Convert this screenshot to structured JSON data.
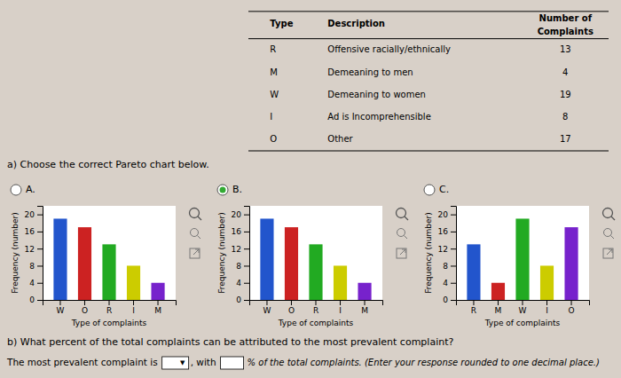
{
  "background": "#d8d0c8",
  "table": {
    "headers": [
      "Type",
      "Description",
      [
        "Number of",
        "Complaints"
      ]
    ],
    "rows": [
      [
        "R",
        "Offensive racially/ethnically",
        13
      ],
      [
        "M",
        "Demeaning to men",
        4
      ],
      [
        "W",
        "Demeaning to women",
        19
      ],
      [
        "I",
        "Ad is Incomprehensible",
        8
      ],
      [
        "O",
        "Other",
        17
      ]
    ]
  },
  "question_a": "a) Choose the correct Pareto chart below.",
  "selected": "B.",
  "chart_data": [
    {
      "type": "bar",
      "title": "A.",
      "categories": [
        "W",
        "O",
        "R",
        "I",
        "M"
      ],
      "values": [
        19,
        17,
        13,
        8,
        4
      ],
      "colors": [
        "#2255cc",
        "#cc2222",
        "#22aa22",
        "#cccc00",
        "#7722cc"
      ],
      "xlabel": "Type of complaints",
      "ylabel": "Frequency (number)",
      "ylim": [
        0,
        22
      ],
      "yticks": [
        0,
        4,
        8,
        12,
        16,
        20
      ],
      "grid": false
    },
    {
      "type": "bar",
      "title": "B.",
      "categories": [
        "W",
        "O",
        "R",
        "I",
        "M"
      ],
      "values": [
        19,
        17,
        13,
        8,
        4
      ],
      "colors": [
        "#2255cc",
        "#cc2222",
        "#22aa22",
        "#cccc00",
        "#7722cc"
      ],
      "xlabel": "Type of complaints",
      "ylabel": "Frequency (number)",
      "ylim": [
        0,
        22
      ],
      "yticks": [
        0,
        4,
        8,
        12,
        16,
        20
      ],
      "grid": false
    },
    {
      "type": "bar",
      "title": "C.",
      "categories": [
        "R",
        "M",
        "W",
        "I",
        "O"
      ],
      "values": [
        13,
        4,
        19,
        8,
        17
      ],
      "colors": [
        "#2255cc",
        "#cc2222",
        "#22aa22",
        "#cccc00",
        "#7722cc"
      ],
      "xlabel": "Type of complaints",
      "ylabel": "Frequency (number)",
      "ylim": [
        0,
        22
      ],
      "yticks": [
        0,
        4,
        8,
        12,
        16,
        20
      ],
      "grid": false
    }
  ],
  "question_b": "b) What percent of the total complaints can be attributed to the most prevalent complaint?",
  "answer_line": {
    "prefix": "The most prevalent complaint is",
    "dropdown": "▼",
    "middle": ", with",
    "suffix": "% of the total complaints. (Enter your response rounded to one decimal place.)"
  }
}
